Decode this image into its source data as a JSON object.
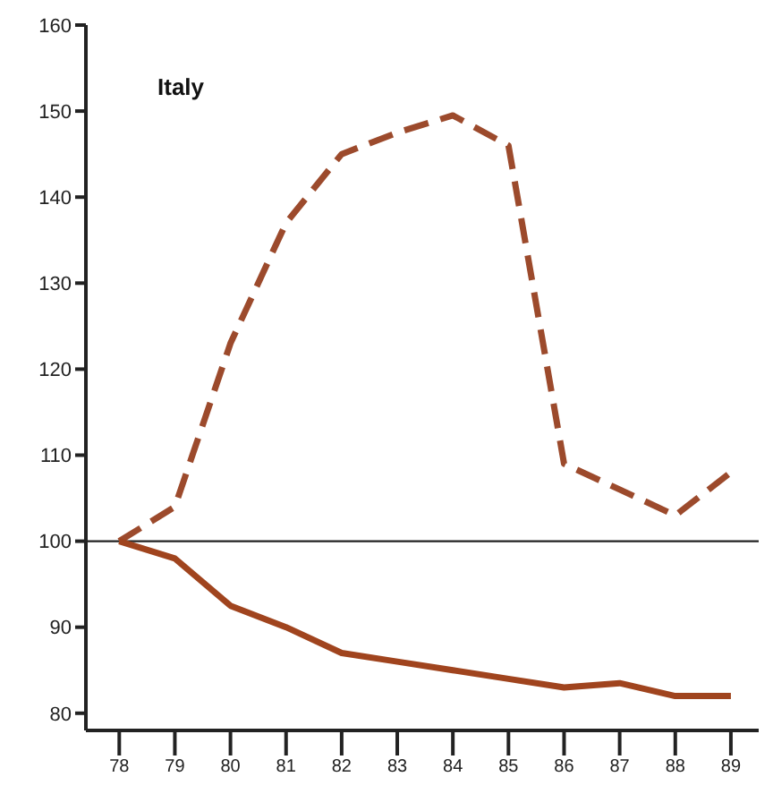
{
  "chart_data": {
    "type": "line",
    "title": "Italy",
    "x": [
      78,
      79,
      80,
      81,
      82,
      83,
      84,
      85,
      86,
      87,
      88,
      89
    ],
    "series": [
      {
        "color": "#9c4a2c",
        "line_style": "dashed",
        "values": [
          100,
          104,
          123,
          137,
          145,
          147.5,
          149.5,
          146,
          109,
          106,
          103,
          108
        ]
      },
      {
        "color": "#a0441e",
        "line_style": "solid",
        "values": [
          100,
          98,
          92.5,
          90,
          87,
          86,
          85,
          84,
          83,
          83.5,
          82,
          82
        ]
      }
    ],
    "xlim": [
      77.4,
      89.5
    ],
    "xticks": [
      78,
      79,
      80,
      81,
      82,
      83,
      84,
      85,
      86,
      87,
      88,
      89
    ],
    "ylim": [
      78,
      160
    ],
    "yticks": [
      80,
      90,
      100,
      110,
      120,
      130,
      140,
      150,
      160
    ],
    "ref_lines": [
      {
        "axis": "y",
        "value": 100,
        "color": "#222222"
      }
    ],
    "marker": "none"
  }
}
